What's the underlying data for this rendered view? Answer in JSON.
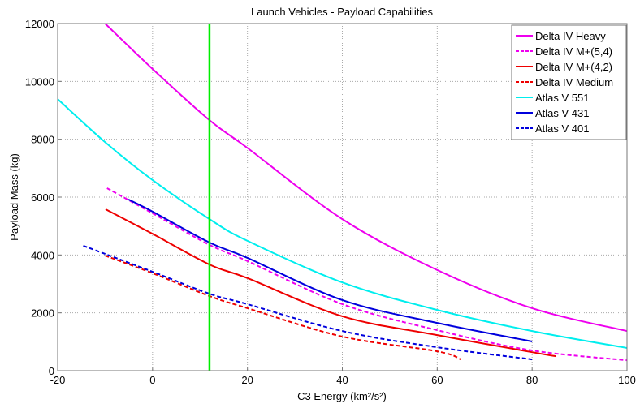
{
  "chart_data": {
    "type": "line",
    "title": "Launch Vehicles - Payload Capabilities",
    "xlabel": "C3 Energy (km²/s²)",
    "ylabel": "Payload Mass (kg)",
    "xlim": [
      -20,
      100
    ],
    "ylim": [
      0,
      12000
    ],
    "xticks": [
      -20,
      0,
      20,
      40,
      60,
      80,
      100
    ],
    "yticks": [
      0,
      2000,
      4000,
      6000,
      8000,
      10000,
      12000
    ],
    "grid": true,
    "legend_placement": "top-right",
    "reference_lines": [
      {
        "x": 12,
        "color": "#00ee00"
      }
    ],
    "series": [
      {
        "name": "Delta IV Heavy",
        "color": "#ee00ee",
        "dash": false,
        "x": [
          -10,
          0,
          12,
          20,
          40,
          60,
          80,
          100
        ],
        "y": [
          12000,
          10430,
          8660,
          7700,
          5240,
          3480,
          2160,
          1370
        ]
      },
      {
        "name": "Delta IV M+(5,4)",
        "color": "#ee00ee",
        "dash": true,
        "x": [
          -9.6,
          0,
          12,
          20,
          40,
          60,
          80,
          100
        ],
        "y": [
          6310,
          5440,
          4350,
          3790,
          2300,
          1400,
          700,
          360
        ]
      },
      {
        "name": "Delta IV M+(4,2)",
        "color": "#ee0000",
        "dash": false,
        "x": [
          -9.9,
          0,
          12,
          20,
          40,
          60,
          80,
          85
        ],
        "y": [
          5580,
          4730,
          3670,
          3200,
          1880,
          1230,
          640,
          500
        ]
      },
      {
        "name": "Delta IV Medium",
        "color": "#ee0000",
        "dash": true,
        "x": [
          -10,
          0,
          12,
          20,
          40,
          60,
          65
        ],
        "y": [
          3980,
          3370,
          2580,
          2160,
          1180,
          670,
          390
        ]
      },
      {
        "name": "Atlas V 551",
        "color": "#00eeee",
        "dash": false,
        "x": [
          -20,
          -10,
          0,
          12,
          20,
          40,
          60,
          80,
          100
        ],
        "y": [
          9390,
          7900,
          6590,
          5240,
          4490,
          3050,
          2100,
          1370,
          785
        ]
      },
      {
        "name": "Atlas V 431",
        "color": "#0000dd",
        "dash": false,
        "x": [
          -5.1,
          0,
          12,
          20,
          40,
          60,
          80
        ],
        "y": [
          5920,
          5500,
          4430,
          3900,
          2440,
          1650,
          1010
        ]
      },
      {
        "name": "Atlas V 401",
        "color": "#0000dd",
        "dash": true,
        "x": [
          -14.6,
          0,
          12,
          20,
          40,
          60,
          80
        ],
        "y": [
          4320,
          3420,
          2660,
          2300,
          1370,
          810,
          390
        ]
      }
    ]
  }
}
